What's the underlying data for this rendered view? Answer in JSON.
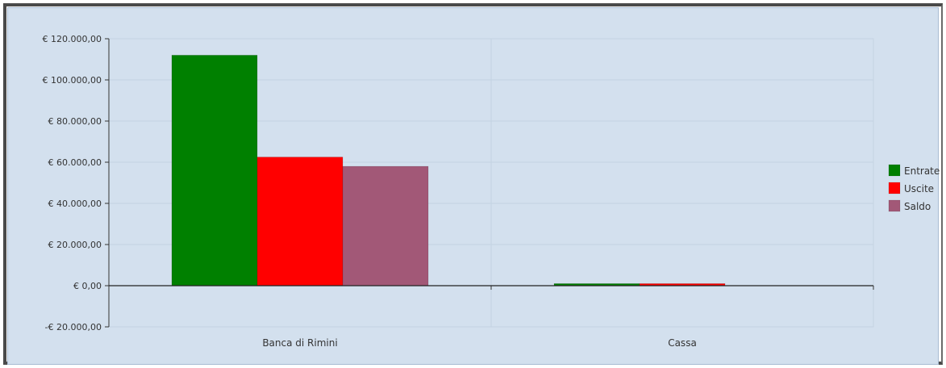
{
  "chart_data": {
    "type": "bar",
    "categories": [
      "Banca di Rimini",
      "Cassa"
    ],
    "series": [
      {
        "name": "Entrate",
        "values": [
          112000,
          1000
        ],
        "color": "#008000"
      },
      {
        "name": "Uscite",
        "values": [
          62500,
          1000
        ],
        "color": "#ff0000"
      },
      {
        "name": "Saldo",
        "values": [
          58000,
          0
        ],
        "color": "#a25877"
      }
    ],
    "ylim": [
      -20000,
      120000
    ],
    "yticks": [
      -20000,
      0,
      20000,
      40000,
      60000,
      80000,
      100000,
      120000
    ],
    "ytick_labels": [
      "-€ 20.000,00",
      "€ 0,00",
      "€ 20.000,00",
      "€ 40.000,00",
      "€ 60.000,00",
      "€ 80.000,00",
      "€ 100.000,00",
      "€ 120.000,00"
    ],
    "grid": true,
    "legend_position": "right",
    "title": "",
    "xlabel": "",
    "ylabel": ""
  }
}
